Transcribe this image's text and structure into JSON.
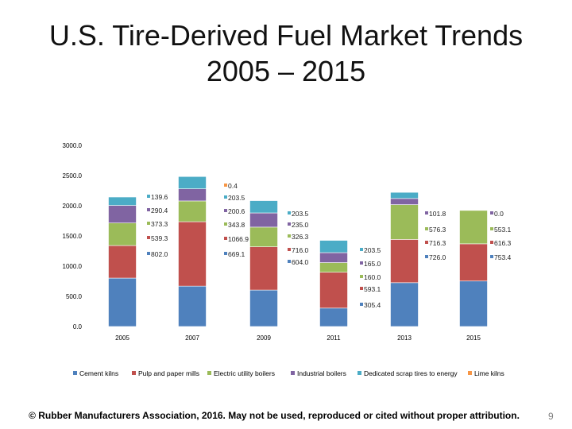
{
  "slide": {
    "title_line1": "U.S. Tire-Derived Fuel Market Trends",
    "title_line2": "2005 – 2015",
    "footer": "© Rubber Manufacturers Association, 2016.  May not be used, reproduced or cited without proper attribution.",
    "page_number": "9"
  },
  "chart_data": {
    "type": "bar",
    "stacked": true,
    "title": "",
    "xlabel": "",
    "ylabel": "",
    "categories": [
      "2005",
      "2007",
      "2009",
      "2011",
      "2013",
      "2015"
    ],
    "ylim": [
      0,
      3000
    ],
    "yticks": [
      0,
      500,
      1000,
      1500,
      2000,
      2500,
      3000
    ],
    "ytick_labels": [
      "0.0",
      "500.0",
      "1000.0",
      "1500.0",
      "2000.0",
      "2500.0",
      "3000.0"
    ],
    "grid": false,
    "legend_position": "bottom",
    "series": [
      {
        "name": "Cement kilns",
        "color": "#4f81bd",
        "values": [
          802.0,
          669.1,
          604.0,
          305.4,
          726.0,
          753.4
        ],
        "labels": [
          "802.0",
          "669.1",
          "604.0",
          "305.4",
          "726.0",
          "753.4"
        ]
      },
      {
        "name": "Pulp and paper mills",
        "color": "#c0504d",
        "values": [
          539.3,
          1066.9,
          716.0,
          593.1,
          716.3,
          616.3
        ],
        "labels": [
          "539.3",
          "1066.9",
          "716.0",
          "593.1",
          "716.3",
          "616.3"
        ]
      },
      {
        "name": "Electric utility boilers",
        "color": "#9bbb59",
        "values": [
          373.3,
          343.8,
          326.3,
          160.0,
          576.3,
          553.1
        ],
        "labels": [
          "373.3",
          "343.8",
          "326.3",
          "160.0",
          "576.3",
          "553.1"
        ]
      },
      {
        "name": "Industrial boilers",
        "color": "#8064a2",
        "values": [
          290.4,
          200.6,
          235.0,
          165.0,
          101.8,
          0.0
        ],
        "labels": [
          "290.4",
          "200.6",
          "235.0",
          "165.0",
          "101.8",
          "0.0"
        ]
      },
      {
        "name": "Dedicated scrap tires to energy",
        "color": "#4bacc6",
        "values": [
          139.6,
          203.5,
          203.5,
          203.5,
          101.8,
          0.0
        ],
        "labels": [
          "139.6",
          "203.5",
          "203.5",
          "203.5",
          "",
          ""
        ]
      },
      {
        "name": "Lime kilns",
        "color": "#f79646",
        "values": [
          0.0,
          0.4,
          0.0,
          0.0,
          0.0,
          0.0
        ],
        "labels": [
          "",
          "0.4",
          "",
          "",
          "",
          ""
        ]
      }
    ]
  }
}
